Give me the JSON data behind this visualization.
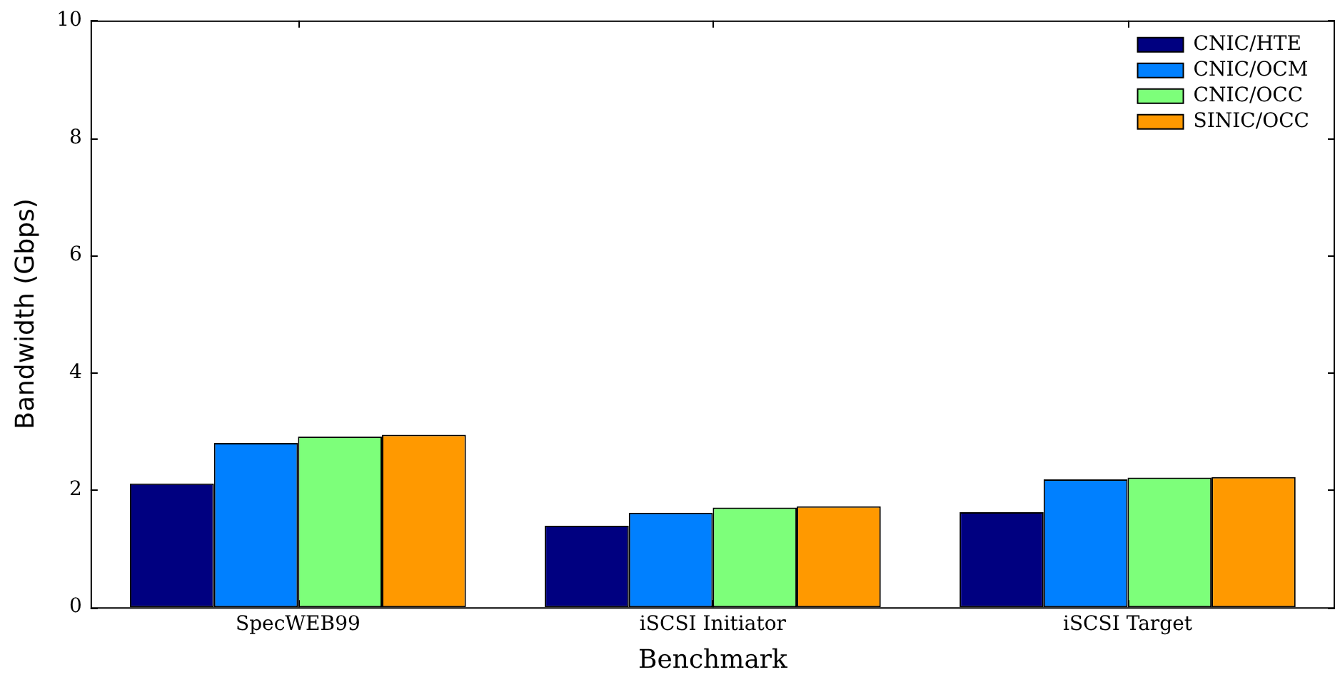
{
  "chart_data": {
    "type": "bar",
    "xlabel": "Benchmark",
    "ylabel": "Bandwidth (Gbps)",
    "categories": [
      "SpecWEB99",
      "iSCSI Initiator",
      "iSCSI Target"
    ],
    "series": [
      {
        "name": "CNIC/HTE",
        "color": "#000080",
        "values": [
          2.11,
          1.39,
          1.62
        ]
      },
      {
        "name": "CNIC/OCM",
        "color": "#0080ff",
        "values": [
          2.8,
          1.61,
          2.18
        ]
      },
      {
        "name": "CNIC/OCC",
        "color": "#7dff7a",
        "values": [
          2.91,
          1.7,
          2.21
        ]
      },
      {
        "name": "SINIC/OCC",
        "color": "#ff9900",
        "values": [
          2.94,
          1.72,
          2.22
        ]
      }
    ],
    "ylim": [
      0,
      10
    ],
    "yticks": [
      0,
      2,
      4,
      6,
      8,
      10
    ],
    "grid": false,
    "legend": "top right"
  }
}
